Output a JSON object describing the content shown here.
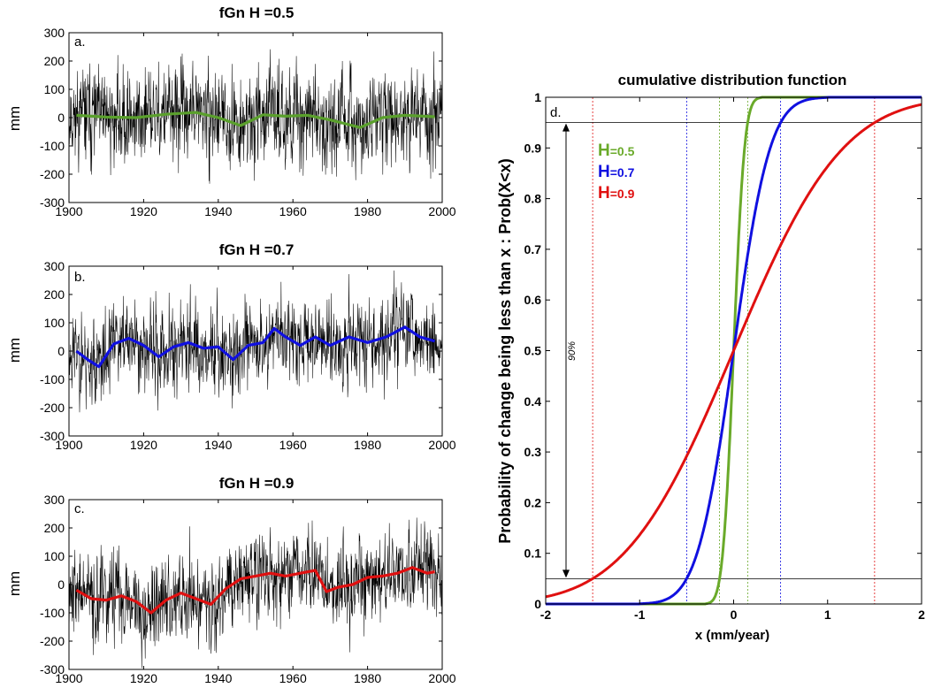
{
  "chart_data": [
    {
      "type": "line",
      "panel_label": "a.",
      "title": "fGn H =0.5",
      "ylabel": "mm",
      "xlim": [
        1900,
        2000
      ],
      "ylim": [
        -300,
        300
      ],
      "xticks": [
        "1900",
        "1920",
        "1940",
        "1960",
        "1980",
        "2000"
      ],
      "yticks": [
        "300",
        "200",
        "100",
        "0",
        "-100",
        "-200",
        "-300"
      ],
      "noise_amplitude": 95,
      "series": [
        {
          "color": "#5aa02c",
          "x": [
            1902,
            1910,
            1918,
            1926,
            1934,
            1940,
            1946,
            1952,
            1958,
            1964,
            1970,
            1978,
            1984,
            1990,
            1998
          ],
          "y": [
            8,
            2,
            0,
            12,
            18,
            0,
            -28,
            10,
            5,
            8,
            -8,
            -35,
            0,
            8,
            3
          ]
        }
      ]
    },
    {
      "type": "line",
      "panel_label": "b.",
      "title": "fGn H =0.7",
      "ylabel": "mm",
      "xlim": [
        1900,
        2000
      ],
      "ylim": [
        -300,
        300
      ],
      "xticks": [
        "1900",
        "1920",
        "1940",
        "1960",
        "1980",
        "2000"
      ],
      "yticks": [
        "300",
        "200",
        "100",
        "0",
        "-100",
        "-200",
        "-300"
      ],
      "noise_amplitude": 90,
      "series": [
        {
          "color": "#1010e0",
          "x": [
            1902,
            1905,
            1908,
            1912,
            1916,
            1920,
            1924,
            1928,
            1932,
            1936,
            1940,
            1944,
            1948,
            1952,
            1955,
            1958,
            1962,
            1966,
            1970,
            1975,
            1980,
            1985,
            1990,
            1994,
            1998
          ],
          "y": [
            0,
            -30,
            -55,
            25,
            45,
            20,
            -20,
            15,
            30,
            10,
            15,
            -30,
            20,
            30,
            80,
            50,
            20,
            50,
            20,
            50,
            30,
            50,
            85,
            50,
            35
          ]
        }
      ]
    },
    {
      "type": "line",
      "panel_label": "c.",
      "title": "fGn H =0.9",
      "ylabel": "mm",
      "xlim": [
        1900,
        2000
      ],
      "ylim": [
        -300,
        300
      ],
      "xticks": [
        "1900",
        "1920",
        "1940",
        "1960",
        "1980",
        "2000"
      ],
      "yticks": [
        "300",
        "200",
        "100",
        "0",
        "-100",
        "-200",
        "-300"
      ],
      "noise_amplitude": 90,
      "series": [
        {
          "color": "#e01010",
          "x": [
            1902,
            1906,
            1910,
            1914,
            1918,
            1922,
            1926,
            1930,
            1934,
            1938,
            1942,
            1946,
            1950,
            1954,
            1958,
            1962,
            1966,
            1969,
            1972,
            1976,
            1980,
            1984,
            1988,
            1992,
            1996,
            1998
          ],
          "y": [
            -20,
            -50,
            -55,
            -40,
            -60,
            -100,
            -55,
            -30,
            -50,
            -70,
            -15,
            20,
            30,
            40,
            30,
            40,
            50,
            -25,
            -10,
            0,
            25,
            30,
            40,
            60,
            40,
            45
          ]
        }
      ]
    },
    {
      "type": "line",
      "panel_label": "d.",
      "title": "cumulative distribution function",
      "xlabel": "x (mm/year)",
      "ylabel": "Probability of change being less than x : Prob(X<x)",
      "xlim": [
        -2,
        2
      ],
      "ylim": [
        0,
        1
      ],
      "xticks": [
        "-2",
        "-1",
        "0",
        "1",
        "2"
      ],
      "yticks": [
        "0",
        "0.1",
        "0.2",
        "0.3",
        "0.4",
        "0.5",
        "0.6",
        "0.7",
        "0.8",
        "0.9",
        "1"
      ],
      "hlines": [
        0.05,
        0.95
      ],
      "annotation": "90%",
      "legend_position": "top-left",
      "series": [
        {
          "name": "H=0.5",
          "name_letter": "H",
          "name_value": "=0.5",
          "color": "#6aaa2a",
          "sigma": 0.091,
          "bounds_x": [
            -0.15,
            0.15
          ]
        },
        {
          "name": "H=0.7",
          "name_letter": "H",
          "name_value": "=0.7",
          "color": "#1010e0",
          "sigma": 0.304,
          "bounds_x": [
            -0.5,
            0.5
          ]
        },
        {
          "name": "H=0.9",
          "name_letter": "H",
          "name_value": "=0.9",
          "color": "#e01010",
          "sigma": 0.912,
          "bounds_x": [
            -1.5,
            1.5
          ]
        }
      ]
    }
  ]
}
